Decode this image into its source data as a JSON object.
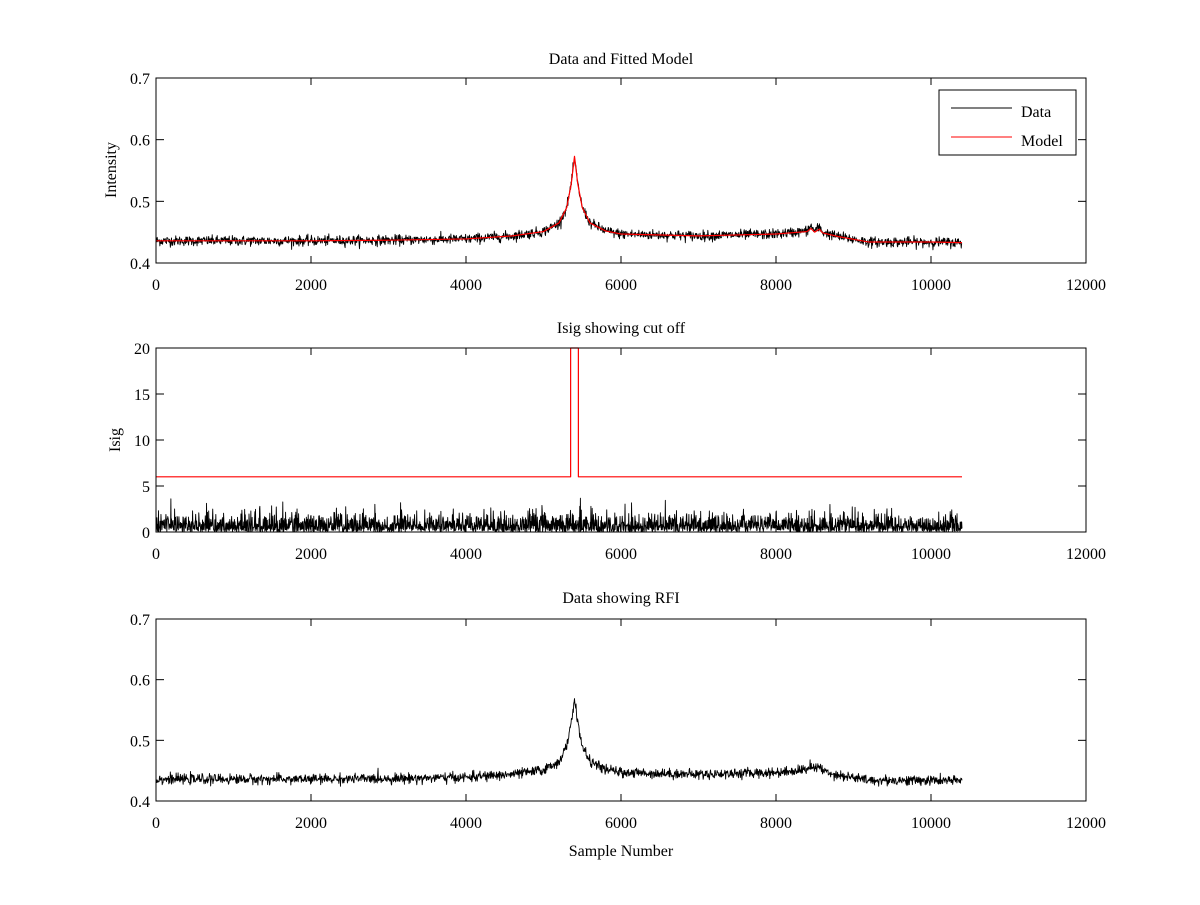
{
  "colors": {
    "data": "#000000",
    "model": "#ff0000",
    "background": "#ffffff"
  },
  "chart_data": [
    {
      "type": "line",
      "title": "Data and Fitted Model",
      "xlabel": "",
      "ylabel": "Intensity",
      "xlim": [
        0,
        12000
      ],
      "ylim": [
        0.4,
        0.7
      ],
      "xticks": [
        0,
        2000,
        4000,
        6000,
        8000,
        10000,
        12000
      ],
      "xtick_labels": [
        "0",
        "2000",
        "4000",
        "6000",
        "8000",
        "10000",
        "12000"
      ],
      "yticks": [
        0.4,
        0.5,
        0.6,
        0.7
      ],
      "ytick_labels": [
        "0.4",
        "0.5",
        "0.6",
        "0.7"
      ],
      "legend": {
        "position": "top-right",
        "entries": [
          "Data",
          "Model"
        ]
      },
      "series": [
        {
          "name": "Data",
          "color": "#000000",
          "kind": "noisy",
          "noise": 0.004,
          "x": [
            0,
            1000,
            2000,
            3000,
            4000,
            4600,
            5000,
            5200,
            5300,
            5360,
            5400,
            5440,
            5500,
            5600,
            5800,
            6000,
            7000,
            8000,
            8400,
            8450,
            8500,
            8560,
            8600,
            8800,
            9200,
            10000,
            10400
          ],
          "y": [
            0.436,
            0.436,
            0.436,
            0.437,
            0.439,
            0.444,
            0.451,
            0.465,
            0.49,
            0.53,
            0.57,
            0.53,
            0.49,
            0.465,
            0.452,
            0.447,
            0.444,
            0.447,
            0.452,
            0.46,
            0.452,
            0.458,
            0.45,
            0.443,
            0.434,
            0.434,
            0.433
          ]
        },
        {
          "name": "Model",
          "color": "#ff0000",
          "kind": "smooth",
          "x": [
            0,
            1000,
            2000,
            3000,
            4000,
            4600,
            5000,
            5200,
            5300,
            5360,
            5400,
            5440,
            5500,
            5600,
            5800,
            6000,
            7000,
            8000,
            8400,
            8450,
            8500,
            8560,
            8600,
            8800,
            9200,
            10000,
            10400
          ],
          "y": [
            0.436,
            0.436,
            0.436,
            0.437,
            0.439,
            0.444,
            0.451,
            0.465,
            0.49,
            0.53,
            0.573,
            0.53,
            0.49,
            0.465,
            0.452,
            0.447,
            0.444,
            0.447,
            0.451,
            0.456,
            0.45,
            0.455,
            0.449,
            0.443,
            0.434,
            0.434,
            0.433
          ]
        }
      ]
    },
    {
      "type": "line",
      "title": "Isig showing cut off",
      "xlabel": "",
      "ylabel": "Isig",
      "xlim": [
        0,
        12000
      ],
      "ylim": [
        0,
        20
      ],
      "xticks": [
        0,
        2000,
        4000,
        6000,
        8000,
        10000,
        12000
      ],
      "xtick_labels": [
        "0",
        "2000",
        "4000",
        "6000",
        "8000",
        "10000",
        "12000"
      ],
      "yticks": [
        0,
        5,
        10,
        15,
        20
      ],
      "ytick_labels": [
        "0",
        "5",
        "10",
        "15",
        "20"
      ],
      "series": [
        {
          "name": "Isig",
          "color": "#000000",
          "kind": "abs-noise",
          "x": [
            0,
            10400
          ],
          "y": [
            0,
            0
          ],
          "noise": 1.6
        },
        {
          "name": "Cut off",
          "color": "#ff0000",
          "kind": "step",
          "x": [
            0,
            5350,
            5350,
            5450,
            5450,
            10400
          ],
          "y": [
            6,
            6,
            20,
            20,
            6,
            6
          ]
        }
      ]
    },
    {
      "type": "line",
      "title": "Data showing RFI",
      "xlabel": "Sample Number",
      "ylabel": "",
      "xlim": [
        0,
        12000
      ],
      "ylim": [
        0.4,
        0.7
      ],
      "xticks": [
        0,
        2000,
        4000,
        6000,
        8000,
        10000,
        12000
      ],
      "xtick_labels": [
        "0",
        "2000",
        "4000",
        "6000",
        "8000",
        "10000",
        "12000"
      ],
      "yticks": [
        0.4,
        0.5,
        0.6,
        0.7
      ],
      "ytick_labels": [
        "0.4",
        "0.5",
        "0.6",
        "0.7"
      ],
      "series": [
        {
          "name": "Data",
          "color": "#000000",
          "kind": "noisy",
          "noise": 0.004,
          "x": [
            0,
            1000,
            2000,
            3000,
            4000,
            4600,
            5000,
            5200,
            5300,
            5360,
            5400,
            5440,
            5500,
            5600,
            5800,
            6000,
            7000,
            8000,
            8400,
            8450,
            8500,
            8560,
            8600,
            8800,
            9200,
            10000,
            10400
          ],
          "y": [
            0.436,
            0.436,
            0.436,
            0.437,
            0.439,
            0.444,
            0.451,
            0.465,
            0.49,
            0.53,
            0.57,
            0.53,
            0.49,
            0.465,
            0.452,
            0.447,
            0.444,
            0.447,
            0.452,
            0.46,
            0.452,
            0.458,
            0.45,
            0.443,
            0.434,
            0.434,
            0.433
          ]
        }
      ]
    }
  ]
}
